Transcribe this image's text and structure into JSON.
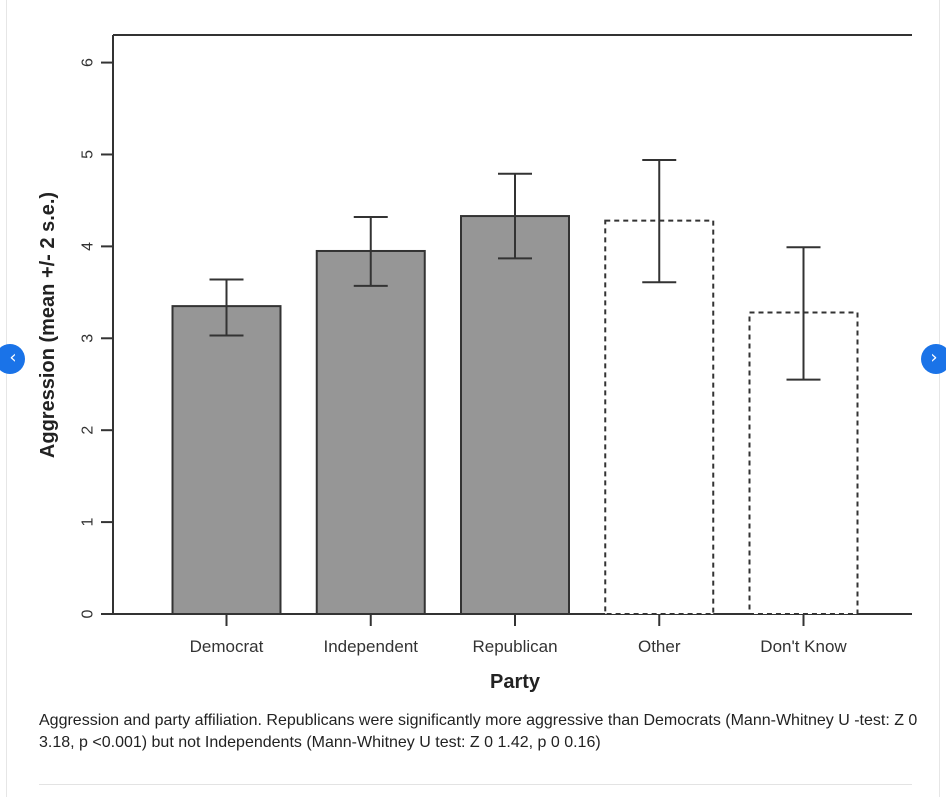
{
  "caption": "Aggression and party affiliation. Republicans were significantly more aggressive than Democrats (Mann-Whitney U -test: Z 0 3.18, p <0.001) but not Independents (Mann-Whitney U test: Z 0 1.42, p 0 0.16)",
  "nav": {
    "prev_icon": "‹",
    "next_icon": "›"
  },
  "chart_data": {
    "type": "bar",
    "xlabel": "Party",
    "ylabel": "Aggression (mean +/- 2 s.e.)",
    "ylim": [
      0,
      6.3
    ],
    "yticks": [
      0,
      1,
      2,
      3,
      4,
      5,
      6
    ],
    "categories": [
      "Democrat",
      "Independent",
      "Republican",
      "Other",
      "Don't Know"
    ],
    "values": [
      3.35,
      3.95,
      4.33,
      4.28,
      3.28
    ],
    "error_low": [
      3.03,
      3.57,
      3.87,
      3.61,
      2.55
    ],
    "error_high": [
      3.64,
      4.32,
      4.79,
      4.94,
      3.99
    ],
    "bar_style": [
      "filled",
      "filled",
      "filled",
      "dashed",
      "dashed"
    ],
    "colors": {
      "fill": "#969696",
      "stroke": "#333333",
      "axis": "#333333"
    },
    "grid": false
  }
}
